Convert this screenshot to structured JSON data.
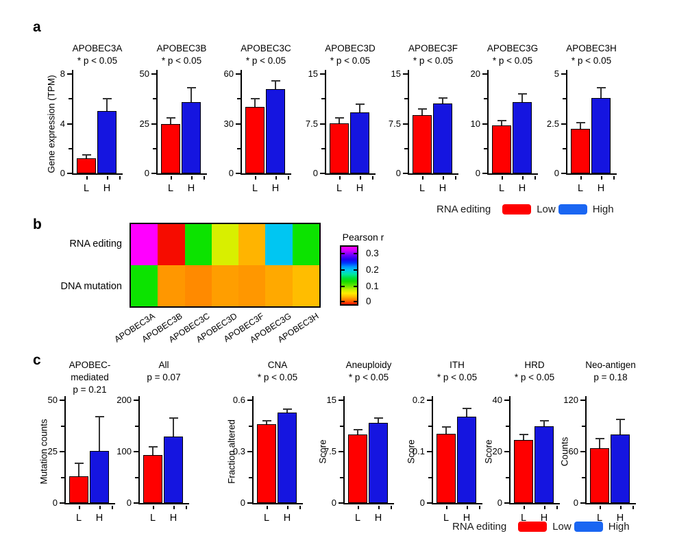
{
  "panels": {
    "a": {
      "label": "a",
      "legend": {
        "title": "RNA editing",
        "low": "Low",
        "high": "High"
      }
    },
    "b": {
      "label": "b"
    },
    "c": {
      "label": "c",
      "legend": {
        "title": "RNA editing",
        "low": "Low",
        "high": "High"
      }
    }
  },
  "colors": {
    "bar_low": "#ff0000",
    "bar_high": "#1515e0",
    "legend_low": "#ff0000",
    "legend_high": "#1a66f2",
    "error_bar": "#333333",
    "heatmap_magenta": "#ff00ff",
    "heatmap_red": "#f60c00",
    "heatmap_green": "#0ce300",
    "heatmap_cyan": "#00c6f2"
  },
  "chart_data": [
    {
      "type": "bar",
      "panel": "a",
      "title": "APOBEC3A",
      "title_lines": [
        "APOBEC3A"
      ],
      "sig": "* p < 0.05",
      "ylabel": "Gene expression (TPM)",
      "categories": [
        "L",
        "H"
      ],
      "series": [
        {
          "name": "Low"
        },
        {
          "name": "High"
        }
      ],
      "values": [
        1.2,
        5.0
      ],
      "errors_top": [
        1.5,
        6.0
      ],
      "ylim": [
        0,
        8
      ],
      "yticks": [
        0,
        4,
        8
      ]
    },
    {
      "type": "bar",
      "panel": "a",
      "title": "APOBEC3B",
      "title_lines": [
        "APOBEC3B"
      ],
      "sig": "* p < 0.05",
      "ylabel": "",
      "categories": [
        "L",
        "H"
      ],
      "values": [
        25,
        36
      ],
      "errors_top": [
        28,
        43
      ],
      "ylim": [
        0,
        50
      ],
      "yticks": [
        0,
        25,
        50
      ]
    },
    {
      "type": "bar",
      "panel": "a",
      "title": "APOBEC3C",
      "title_lines": [
        "APOBEC3C"
      ],
      "sig": "* p < 0.05",
      "ylabel": "",
      "categories": [
        "L",
        "H"
      ],
      "values": [
        40,
        51
      ],
      "errors_top": [
        45,
        56
      ],
      "ylim": [
        0,
        60
      ],
      "yticks": [
        0,
        30,
        60
      ]
    },
    {
      "type": "bar",
      "panel": "a",
      "title": "APOBEC3D",
      "title_lines": [
        "APOBEC3D"
      ],
      "sig": "* p < 0.05",
      "ylabel": "",
      "categories": [
        "L",
        "H"
      ],
      "values": [
        7.6,
        9.2
      ],
      "errors_top": [
        8.4,
        10.4
      ],
      "ylim": [
        0,
        15
      ],
      "yticks": [
        0,
        7.5,
        15
      ]
    },
    {
      "type": "bar",
      "panel": "a",
      "title": "APOBEC3F",
      "title_lines": [
        "APOBEC3F"
      ],
      "sig": "* p < 0.05",
      "ylabel": "",
      "categories": [
        "L",
        "H"
      ],
      "values": [
        8.8,
        10.6
      ],
      "errors_top": [
        9.7,
        11.4
      ],
      "ylim": [
        0,
        15
      ],
      "yticks": [
        0,
        7.5,
        15
      ]
    },
    {
      "type": "bar",
      "panel": "a",
      "title": "APOBEC3G",
      "title_lines": [
        "APOBEC3G"
      ],
      "sig": "* p < 0.05",
      "ylabel": "",
      "categories": [
        "L",
        "H"
      ],
      "values": [
        9.6,
        14.4
      ],
      "errors_top": [
        10.6,
        16.0
      ],
      "ylim": [
        0,
        20
      ],
      "yticks": [
        0,
        10,
        20
      ]
    },
    {
      "type": "bar",
      "panel": "a",
      "title": "APOBEC3H",
      "title_lines": [
        "APOBEC3H"
      ],
      "sig": "* p < 0.05",
      "ylabel": "",
      "categories": [
        "L",
        "H"
      ],
      "values": [
        2.25,
        3.8
      ],
      "errors_top": [
        2.55,
        4.3
      ],
      "ylim": [
        0,
        5
      ],
      "yticks": [
        0,
        2.5,
        5
      ]
    },
    {
      "type": "heatmap",
      "panel": "b",
      "rows": [
        "RNA editing",
        "DNA mutation"
      ],
      "columns": [
        "APOBEC3A",
        "APOBEC3B",
        "APOBEC3C",
        "APOBEC3D",
        "APOBEC3F",
        "APOBEC3G",
        "APOBEC3H"
      ],
      "values": [
        [
          0.32,
          0.01,
          0.12,
          0.09,
          0.05,
          0.2,
          0.12
        ],
        [
          0.12,
          0.05,
          0.04,
          0.05,
          0.05,
          0.06,
          0.07
        ]
      ],
      "cell_colors": [
        [
          "#ff00ff",
          "#f60c00",
          "#0ce300",
          "#d8ef00",
          "#ffb400",
          "#00c6f2",
          "#0ce300"
        ],
        [
          "#0ce300",
          "#ff9700",
          "#ff8a00",
          "#ff9e00",
          "#ff9700",
          "#ffa900",
          "#ffbd00"
        ]
      ],
      "colorbar": {
        "title": "Pearson r",
        "ticks": [
          "0.3",
          "0.2",
          "0.1",
          "0"
        ],
        "range": [
          0,
          0.34
        ]
      }
    },
    {
      "type": "bar",
      "panel": "c",
      "title": "APOBEC-mediated",
      "title_lines": [
        "APOBEC-",
        "mediated"
      ],
      "sig": "p = 0.21",
      "ylabel": "Mutation counts",
      "categories": [
        "L",
        "H"
      ],
      "values": [
        13,
        25.5
      ],
      "errors_top": [
        19.5,
        42
      ],
      "ylim": [
        0,
        50
      ],
      "yticks": [
        0,
        25,
        50
      ]
    },
    {
      "type": "bar",
      "panel": "c",
      "title": "All",
      "title_lines": [
        "All"
      ],
      "sig": "p = 0.07",
      "ylabel": "",
      "categories": [
        "L",
        "H"
      ],
      "values": [
        93,
        129
      ],
      "errors_top": [
        110,
        166
      ],
      "ylim": [
        0,
        200
      ],
      "yticks": [
        0,
        100,
        200
      ]
    },
    {
      "type": "bar",
      "panel": "c",
      "title": "CNA",
      "title_lines": [
        "CNA"
      ],
      "sig": "* p < 0.05",
      "ylabel": "Fraction altered",
      "categories": [
        "L",
        "H"
      ],
      "values": [
        0.46,
        0.53
      ],
      "errors_top": [
        0.48,
        0.55
      ],
      "ylim": [
        0,
        0.6
      ],
      "yticks": [
        0,
        0.3,
        0.6
      ]
    },
    {
      "type": "bar",
      "panel": "c",
      "title": "Aneuploidy",
      "title_lines": [
        "Aneuploidy"
      ],
      "sig": "* p < 0.05",
      "ylabel": "Score",
      "categories": [
        "L",
        "H"
      ],
      "values": [
        10.0,
        11.7
      ],
      "errors_top": [
        10.7,
        12.4
      ],
      "ylim": [
        0,
        15
      ],
      "yticks": [
        0,
        7.5,
        15
      ]
    },
    {
      "type": "bar",
      "panel": "c",
      "title": "ITH",
      "title_lines": [
        "ITH"
      ],
      "sig": "* p < 0.05",
      "ylabel": "Score",
      "categories": [
        "L",
        "H"
      ],
      "values": [
        0.135,
        0.168
      ],
      "errors_top": [
        0.148,
        0.184
      ],
      "ylim": [
        0,
        0.2
      ],
      "yticks": [
        0,
        0.1,
        0.2
      ]
    },
    {
      "type": "bar",
      "panel": "c",
      "title": "HRD",
      "title_lines": [
        "HRD"
      ],
      "sig": "* p < 0.05",
      "ylabel": "Score",
      "categories": [
        "L",
        "H"
      ],
      "values": [
        24.6,
        30
      ],
      "errors_top": [
        26.7,
        32
      ],
      "ylim": [
        0,
        40
      ],
      "yticks": [
        0,
        20,
        40
      ]
    },
    {
      "type": "bar",
      "panel": "c",
      "title": "Neo-antigen",
      "title_lines": [
        "Neo-antigen"
      ],
      "sig": "p = 0.18",
      "ylabel": "Counts",
      "categories": [
        "L",
        "H"
      ],
      "values": [
        64,
        80
      ],
      "errors_top": [
        75,
        98
      ],
      "ylim": [
        0,
        120
      ],
      "yticks": [
        0,
        60,
        120
      ]
    }
  ]
}
